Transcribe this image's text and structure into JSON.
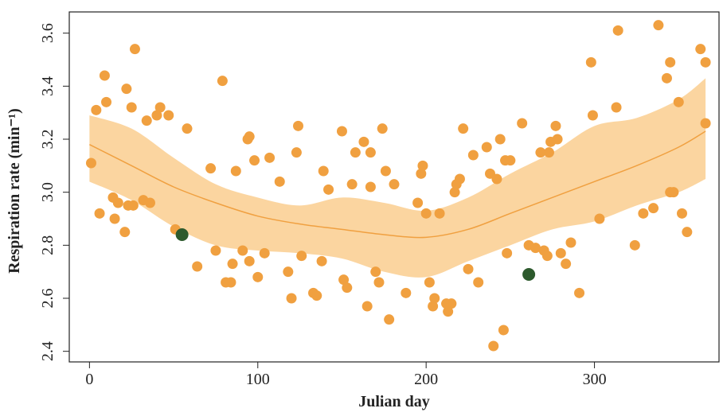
{
  "chart_data": {
    "type": "scatter",
    "x_label": "Julian day",
    "y_label": "Respiration rate (min⁻¹)",
    "xlim": [
      -12,
      374
    ],
    "ylim": [
      2.36,
      3.68
    ],
    "xticks": [
      0,
      100,
      200,
      300
    ],
    "yticks": [
      2.4,
      2.6,
      2.8,
      {
        "value": 3,
        "label": "3.0"
      },
      3.2,
      3.4,
      3.6
    ],
    "points": {
      "color": "#f0a040",
      "x": [
        1,
        4,
        6,
        9,
        10,
        14,
        15,
        17,
        21,
        22,
        23,
        25,
        26,
        27,
        32,
        34,
        36,
        40,
        42,
        47,
        51,
        58,
        64,
        72,
        75,
        79,
        81,
        84,
        85,
        87,
        91,
        94,
        95,
        95,
        98,
        100,
        104,
        107,
        113,
        118,
        120,
        123,
        124,
        126,
        133,
        135,
        138,
        139,
        142,
        150,
        151,
        153,
        156,
        158,
        163,
        165,
        167,
        167,
        170,
        172,
        174,
        176,
        178,
        181,
        188,
        195,
        197,
        198,
        200,
        202,
        204,
        205,
        208,
        212,
        213,
        215,
        217,
        218,
        220,
        222,
        225,
        228,
        231,
        236,
        238,
        240,
        242,
        244,
        246,
        247,
        248,
        250,
        257,
        261,
        265,
        268,
        270,
        272,
        273,
        274,
        277,
        278,
        280,
        283,
        286,
        291,
        298,
        299,
        303,
        313,
        314,
        324,
        329,
        335,
        338,
        343,
        345,
        345,
        347,
        350,
        352,
        355,
        363,
        366,
        366
      ],
      "values": [
        3.11,
        3.31,
        2.92,
        3.44,
        3.34,
        2.98,
        2.9,
        2.96,
        2.85,
        3.39,
        2.95,
        3.32,
        2.95,
        3.54,
        2.97,
        3.27,
        2.96,
        3.29,
        3.32,
        3.29,
        2.86,
        3.24,
        2.72,
        3.09,
        2.78,
        3.42,
        2.66,
        2.66,
        2.73,
        3.08,
        2.78,
        3.2,
        3.21,
        2.74,
        3.12,
        2.68,
        2.77,
        3.13,
        3.04,
        2.7,
        2.6,
        3.15,
        3.25,
        2.76,
        2.62,
        2.61,
        2.74,
        3.08,
        3.01,
        3.23,
        2.67,
        2.64,
        3.03,
        3.15,
        3.19,
        2.57,
        3.15,
        3.02,
        2.7,
        2.66,
        3.24,
        3.08,
        2.52,
        3.03,
        2.62,
        2.96,
        3.07,
        3.1,
        2.92,
        2.66,
        2.57,
        2.6,
        2.92,
        2.58,
        2.55,
        2.58,
        3,
        3.03,
        3.05,
        3.24,
        2.71,
        3.14,
        2.66,
        3.17,
        3.07,
        2.42,
        3.05,
        3.2,
        2.48,
        3.12,
        2.77,
        3.12,
        3.26,
        2.8,
        2.79,
        3.15,
        2.78,
        2.76,
        3.15,
        3.19,
        3.25,
        3.2,
        2.77,
        2.73,
        2.81,
        2.62,
        3.49,
        3.29,
        2.9,
        3.32,
        3.61,
        2.8,
        2.92,
        2.94,
        3.63,
        3.43,
        3.49,
        3,
        3,
        3.34,
        2.92,
        2.85,
        3.54,
        3.49,
        3.26
      ]
    },
    "highlight": {
      "color": "#2d5a2d",
      "x": [
        55,
        261
      ],
      "values": [
        2.84,
        2.69
      ]
    },
    "fit": {
      "color": "#f0a040",
      "band_color": "#fbd5a0",
      "x": [
        0,
        25,
        50,
        75,
        100,
        125,
        150,
        175,
        200,
        225,
        250,
        275,
        300,
        325,
        350,
        366
      ],
      "values": [
        3.18,
        3.1,
        3.02,
        2.96,
        2.91,
        2.88,
        2.86,
        2.84,
        2.83,
        2.86,
        2.92,
        2.98,
        3.04,
        3.1,
        3.17,
        3.23
      ],
      "upper": [
        3.29,
        3.24,
        3.13,
        3.03,
        2.98,
        2.95,
        2.98,
        2.96,
        2.93,
        2.98,
        3.07,
        3.15,
        3.25,
        3.28,
        3.35,
        3.43
      ],
      "lower": [
        3.04,
        2.97,
        2.87,
        2.8,
        2.78,
        2.77,
        2.75,
        2.7,
        2.68,
        2.74,
        2.8,
        2.86,
        2.89,
        2.95,
        3,
        3.05
      ]
    }
  }
}
